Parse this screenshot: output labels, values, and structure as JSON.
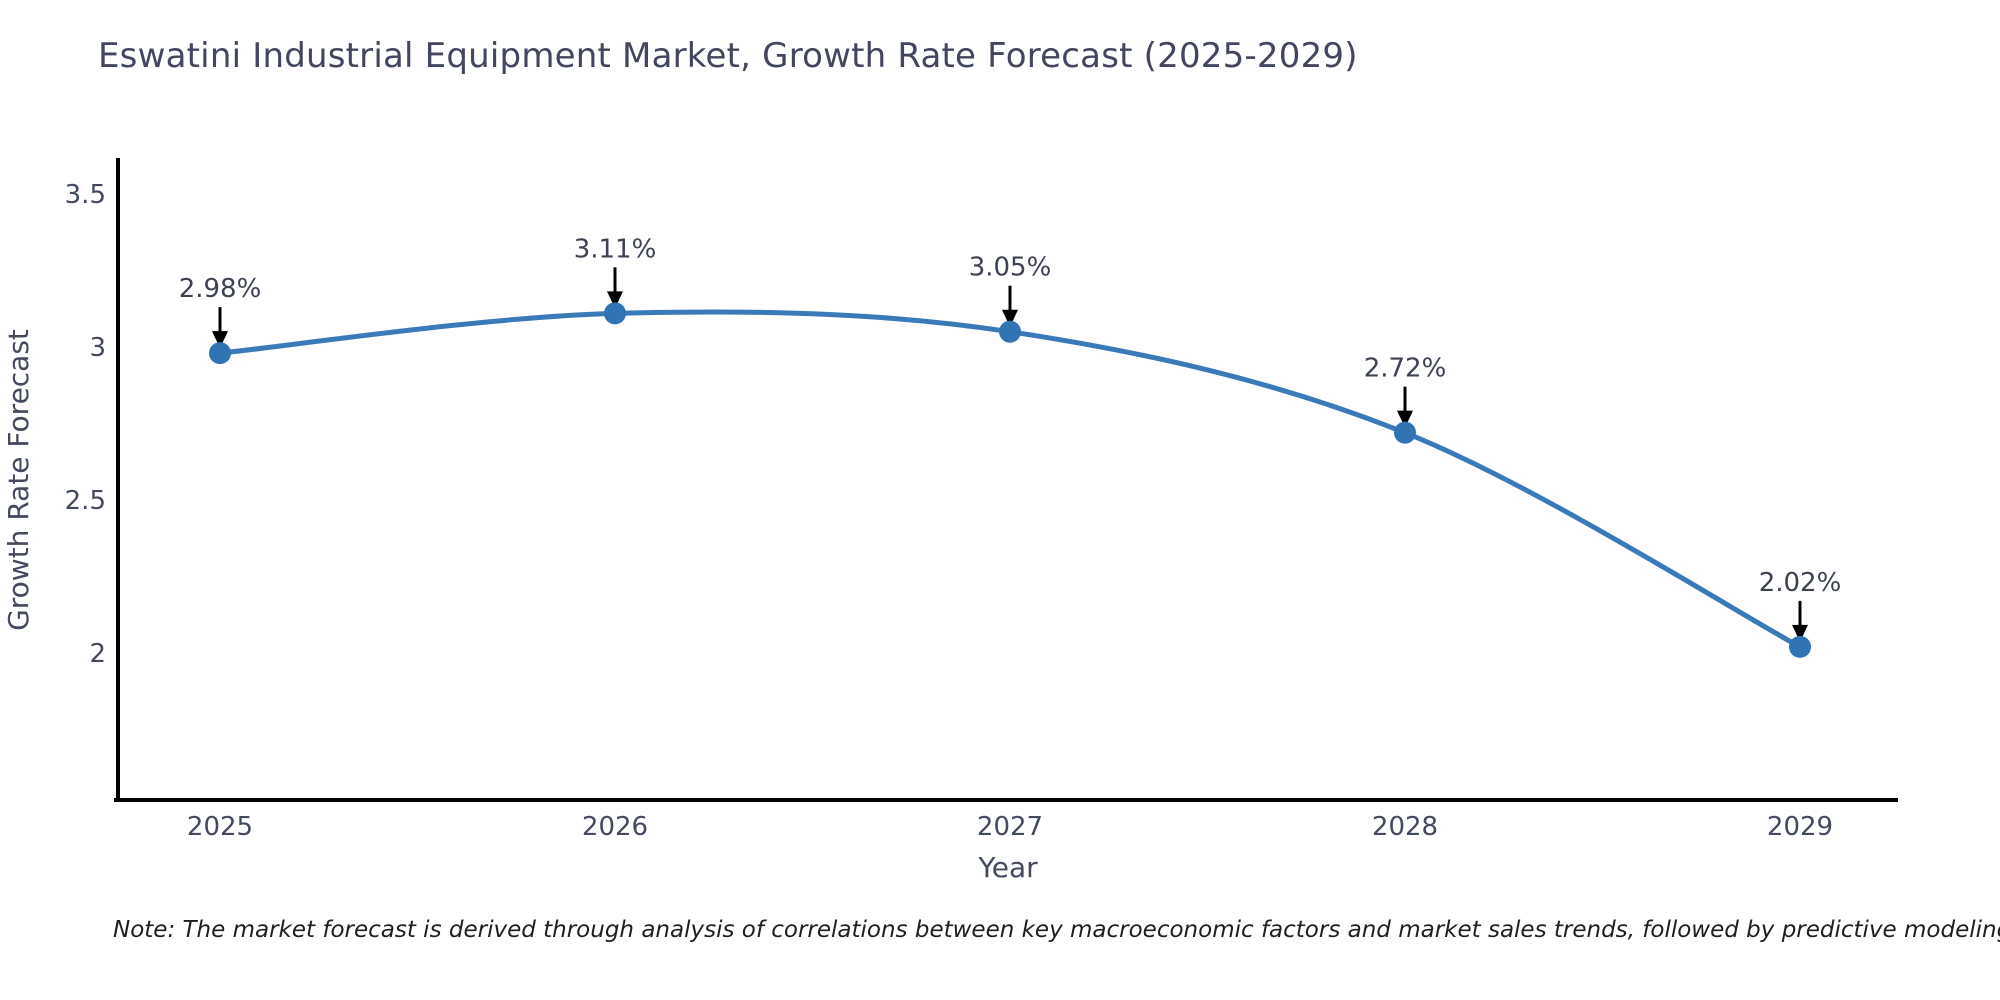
{
  "title": "Eswatini Industrial Equipment Market, Growth Rate Forecast (2025-2029)",
  "note": "Note: The market forecast is derived through analysis of correlations between key macroeconomic factors and market sales trends, followed by predictive modeling to project future sales",
  "chart_data": {
    "type": "line",
    "title": "Eswatini Industrial Equipment Market, Growth Rate Forecast (2025-2029)",
    "x": [
      2025,
      2026,
      2027,
      2028,
      2029
    ],
    "values": [
      2.98,
      3.11,
      3.05,
      2.72,
      2.02
    ],
    "point_labels": [
      "2.98%",
      "3.11%",
      "3.05%",
      "2.72%",
      "2.02%"
    ],
    "xlabel": "Year",
    "ylabel": "Growth Rate Forecast",
    "yticks": [
      3.5,
      3,
      2.5,
      2
    ],
    "ylim": [
      1.5,
      3.6
    ],
    "grid": false,
    "legend": false,
    "line_shape": "spline",
    "annotations": "black arrows pointing down from each percentage label to its data point",
    "colors": {
      "line": "#3a7ab8",
      "marker": "#3174b4",
      "axis": "#000000",
      "tick_text": "#444a5e",
      "title_text": "#42465e",
      "annotation_arrow": "#000000",
      "background": "#ffffff"
    }
  }
}
